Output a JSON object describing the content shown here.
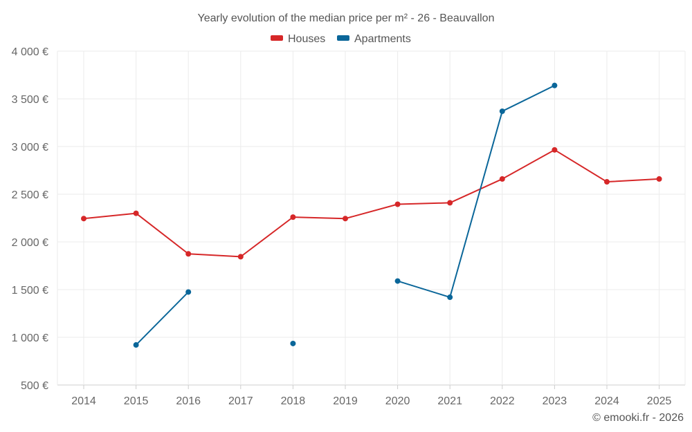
{
  "chart_data": {
    "type": "line",
    "title": "Yearly evolution of the median price per m² - 26 - Beauvallon",
    "x": [
      "2014",
      "2015",
      "2016",
      "2017",
      "2018",
      "2019",
      "2020",
      "2021",
      "2022",
      "2023",
      "2024",
      "2025"
    ],
    "y_ticks": [
      "500 €",
      "1 000 €",
      "1 500 €",
      "2 000 €",
      "2 500 €",
      "3 000 €",
      "3 500 €",
      "4 000 €"
    ],
    "y_tick_values": [
      500,
      1000,
      1500,
      2000,
      2500,
      3000,
      3500,
      4000
    ],
    "ylim": [
      500,
      4000
    ],
    "xlabel": "",
    "ylabel": "",
    "series": [
      {
        "name": "Houses",
        "color": "#d62728",
        "values": [
          2245,
          2300,
          1875,
          1845,
          2260,
          2245,
          2395,
          2410,
          2660,
          2965,
          2630,
          2660
        ]
      },
      {
        "name": "Apartments",
        "color": "#0a6699",
        "values": [
          null,
          920,
          1475,
          null,
          935,
          null,
          1590,
          1420,
          3370,
          3640,
          null,
          null
        ]
      }
    ],
    "legend_position": "top-center",
    "grid": true
  },
  "credit": "© emooki.fr - 2026"
}
